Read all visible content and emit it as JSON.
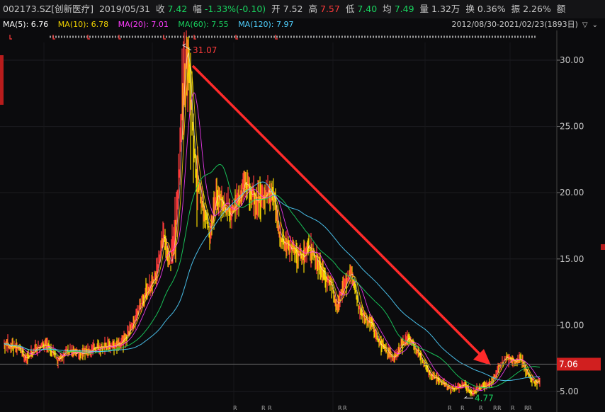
{
  "header": {
    "code": "002173.SZ[创新医疗]",
    "date": "2019/05/31",
    "close_label": "收",
    "close": "7.42",
    "change_label": "幅",
    "change": "-1.33%(-0.10)",
    "open_label": "开",
    "open": "7.52",
    "high_label": "高",
    "high": "7.57",
    "low_label": "低",
    "low": "7.40",
    "avg_label": "均",
    "avg": "7.49",
    "vol_label": "量",
    "vol": "1.32万",
    "turn_label": "换",
    "turn": "0.36%",
    "amp_label": "振",
    "amp": "2.26%",
    "amt_label": "额"
  },
  "ma": {
    "ma5": "MA(5): 6.76",
    "ma10": "MA(10): 6.78",
    "ma20": "MA(20): 7.01",
    "ma60": "MA(60): 7.55",
    "ma120": "MA(120): 7.97",
    "range": "2012/08/30-2021/02/23(1893日)",
    "colors": {
      "ma5": "#ffffff",
      "ma10": "#f2d400",
      "ma20": "#ff3cff",
      "ma60": "#19d35f",
      "ma120": "#4fd0ff"
    }
  },
  "chart_data": {
    "type": "candlestick",
    "y_ticks": [
      "30.00",
      "25.00",
      "20.00",
      "15.00",
      "10.00",
      "5.00"
    ],
    "ylim": [
      4,
      32
    ],
    "high_annotation": "31.07",
    "low_annotation": "4.77",
    "last_price": "7.06",
    "price_path": [
      [
        0,
        8.6
      ],
      [
        20,
        8.3
      ],
      [
        30,
        7.5
      ],
      [
        45,
        8.2
      ],
      [
        60,
        8.6
      ],
      [
        75,
        7.4
      ],
      [
        90,
        8.0
      ],
      [
        110,
        7.9
      ],
      [
        130,
        8.3
      ],
      [
        150,
        8.4
      ],
      [
        170,
        8.9
      ],
      [
        185,
        10.5
      ],
      [
        200,
        12.5
      ],
      [
        215,
        13.8
      ],
      [
        225,
        17.0
      ],
      [
        235,
        14.5
      ],
      [
        245,
        19.0
      ],
      [
        252,
        28.0
      ],
      [
        258,
        31.07
      ],
      [
        264,
        26.5
      ],
      [
        270,
        22.0
      ],
      [
        280,
        19.0
      ],
      [
        290,
        17.0
      ],
      [
        300,
        20.0
      ],
      [
        310,
        19.0
      ],
      [
        320,
        18.5
      ],
      [
        330,
        19.2
      ],
      [
        340,
        21.0
      ],
      [
        350,
        19.8
      ],
      [
        360,
        19.5
      ],
      [
        370,
        20.0
      ],
      [
        380,
        19.8
      ],
      [
        390,
        16.5
      ],
      [
        400,
        16.0
      ],
      [
        410,
        15.5
      ],
      [
        420,
        15.2
      ],
      [
        430,
        16.0
      ],
      [
        440,
        14.9
      ],
      [
        450,
        14.0
      ],
      [
        460,
        13.2
      ],
      [
        470,
        11.5
      ],
      [
        480,
        13.0
      ],
      [
        490,
        14.2
      ],
      [
        500,
        11.5
      ],
      [
        510,
        10.5
      ],
      [
        520,
        10.0
      ],
      [
        530,
        8.6
      ],
      [
        540,
        8.0
      ],
      [
        550,
        7.5
      ],
      [
        560,
        8.5
      ],
      [
        570,
        9.0
      ],
      [
        580,
        8.4
      ],
      [
        590,
        7.4
      ],
      [
        600,
        6.4
      ],
      [
        610,
        6.0
      ],
      [
        620,
        5.6
      ],
      [
        630,
        5.2
      ],
      [
        640,
        5.3
      ],
      [
        650,
        5.6
      ],
      [
        660,
        4.77
      ],
      [
        670,
        5.3
      ],
      [
        680,
        5.5
      ],
      [
        690,
        5.9
      ],
      [
        700,
        7.0
      ],
      [
        710,
        7.6
      ],
      [
        720,
        7.3
      ],
      [
        730,
        7.4
      ],
      [
        740,
        6.2
      ],
      [
        750,
        5.7
      ],
      [
        756,
        5.8
      ]
    ],
    "r_marks": [
      "R",
      "R",
      "R",
      "R",
      "R",
      "R",
      "R",
      "R",
      "R"
    ]
  }
}
